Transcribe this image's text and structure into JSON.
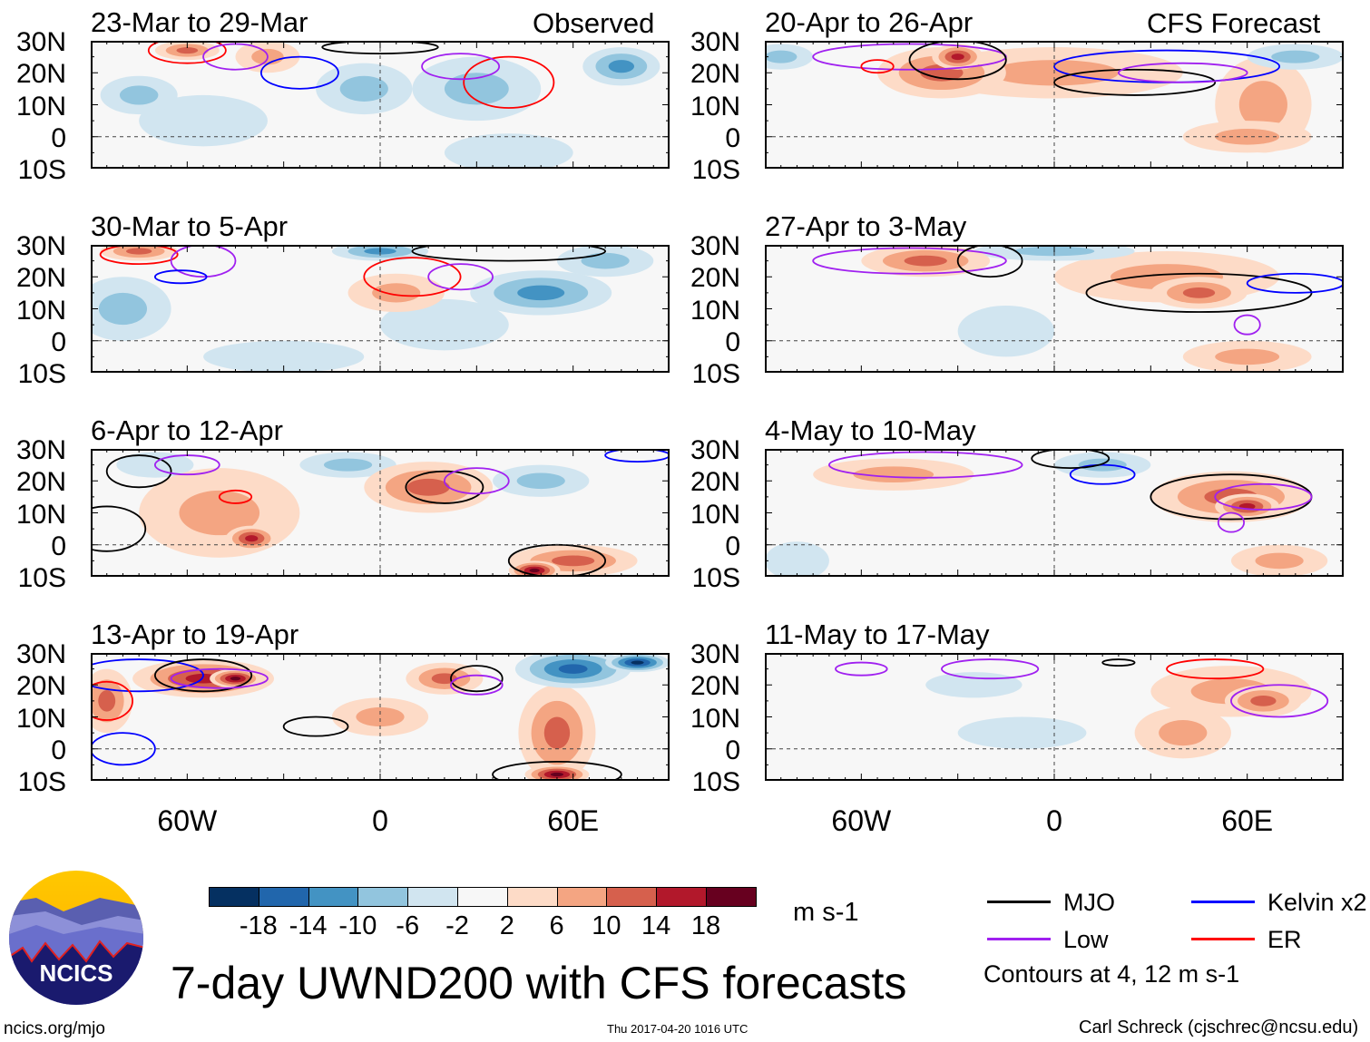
{
  "header": {
    "left_label": "Observed",
    "right_label": "CFS Forecast"
  },
  "panels": [
    {
      "title": "23-Mar to 29-Mar",
      "column": "left",
      "row": 0
    },
    {
      "title": "30-Mar to 5-Apr",
      "column": "left",
      "row": 1
    },
    {
      "title": "6-Apr to 12-Apr",
      "column": "left",
      "row": 2
    },
    {
      "title": "13-Apr to 19-Apr",
      "column": "left",
      "row": 3
    },
    {
      "title": "20-Apr to 26-Apr",
      "column": "right",
      "row": 0
    },
    {
      "title": "27-Apr to 3-May",
      "column": "right",
      "row": 1
    },
    {
      "title": "4-May to 10-May",
      "column": "right",
      "row": 2
    },
    {
      "title": "11-May to 17-May",
      "column": "right",
      "row": 3
    }
  ],
  "lat_labels": [
    "30N",
    "20N",
    "10N",
    "0",
    "10S"
  ],
  "lon_labels": [
    "60W",
    "0",
    "60E"
  ],
  "colorbar": {
    "labels": [
      "-18",
      "-14",
      "-10",
      "-6",
      "-2",
      "2",
      "6",
      "10",
      "14",
      "18"
    ],
    "colors": [
      "#053061",
      "#2166ac",
      "#4393c3",
      "#92c5de",
      "#d1e5f0",
      "#f7f7f7",
      "#fddbc7",
      "#f4a582",
      "#d6604d",
      "#b2182b",
      "#67001f"
    ],
    "units": "m s-1"
  },
  "legend": {
    "items": [
      {
        "label": "MJO",
        "color": "#000000"
      },
      {
        "label": "Kelvin x2",
        "color": "#0000ff"
      },
      {
        "label": "Low",
        "color": "#a020f0"
      },
      {
        "label": "ER",
        "color": "#ff0000"
      }
    ],
    "note": "Contours at 4, 12 m s-1"
  },
  "title": "7-day UWND200 with CFS forecasts",
  "logo_text": "NCICS",
  "footer": {
    "url": "ncics.org/mjo",
    "timestamp": "Thu 2017-04-20 1016 UTC",
    "author": "Carl Schreck (cjschrec@ncsu.edu)"
  },
  "chart_data": {
    "type": "heatmap",
    "variable": "200-hPa zonal wind anomaly (approx.)",
    "lon_range": [
      -90,
      90
    ],
    "lat_range": [
      -10,
      30
    ],
    "anomalies": [
      [
        [
          -75,
          13,
          12,
          6,
          -6
        ],
        [
          -35,
          25,
          10,
          5,
          6
        ],
        [
          -5,
          15,
          15,
          8,
          -6
        ],
        [
          30,
          15,
          20,
          10,
          -6
        ],
        [
          75,
          22,
          12,
          6,
          -10
        ],
        [
          -55,
          5,
          20,
          8,
          -2
        ],
        [
          40,
          -5,
          20,
          6,
          -2
        ],
        [
          -60,
          27,
          10,
          3,
          10
        ]
      ],
      [
        [
          -75,
          28,
          12,
          3,
          10
        ],
        [
          -80,
          10,
          15,
          10,
          -6
        ],
        [
          0,
          28,
          15,
          3,
          -10
        ],
        [
          50,
          15,
          22,
          7,
          -10
        ],
        [
          -30,
          -5,
          25,
          5,
          -2
        ],
        [
          20,
          5,
          20,
          8,
          -2
        ],
        [
          70,
          25,
          15,
          5,
          -6
        ],
        [
          5,
          15,
          15,
          6,
          6
        ]
      ],
      [
        [
          -50,
          10,
          25,
          14,
          6
        ],
        [
          -40,
          2,
          8,
          4,
          14
        ],
        [
          15,
          18,
          20,
          8,
          10
        ],
        [
          60,
          -5,
          20,
          5,
          10
        ],
        [
          48,
          -8,
          8,
          3,
          18
        ],
        [
          -10,
          25,
          15,
          4,
          -6
        ],
        [
          50,
          20,
          15,
          5,
          -6
        ],
        [
          -70,
          25,
          12,
          4,
          -2
        ]
      ],
      [
        [
          -55,
          22,
          22,
          6,
          14
        ],
        [
          -45,
          22,
          8,
          3,
          18
        ],
        [
          -85,
          15,
          8,
          10,
          10
        ],
        [
          20,
          22,
          12,
          5,
          10
        ],
        [
          55,
          5,
          12,
          15,
          10
        ],
        [
          55,
          -8,
          10,
          3,
          18
        ],
        [
          60,
          25,
          18,
          6,
          -14
        ],
        [
          80,
          27,
          10,
          3,
          -18
        ],
        [
          0,
          10,
          15,
          6,
          6
        ]
      ],
      [
        [
          -35,
          20,
          20,
          8,
          10
        ],
        [
          -30,
          25,
          8,
          4,
          14
        ],
        [
          0,
          20,
          40,
          8,
          6
        ],
        [
          65,
          10,
          15,
          15,
          6
        ],
        [
          75,
          25,
          15,
          4,
          -6
        ],
        [
          -85,
          25,
          10,
          4,
          -6
        ],
        [
          60,
          0,
          20,
          5,
          6
        ]
      ],
      [
        [
          -40,
          25,
          20,
          5,
          10
        ],
        [
          35,
          20,
          35,
          8,
          6
        ],
        [
          45,
          15,
          15,
          5,
          10
        ],
        [
          -15,
          3,
          15,
          8,
          -2
        ],
        [
          0,
          28,
          25,
          3,
          -6
        ],
        [
          60,
          -5,
          20,
          5,
          6
        ]
      ],
      [
        [
          -50,
          22,
          25,
          5,
          6
        ],
        [
          55,
          15,
          25,
          8,
          10
        ],
        [
          60,
          12,
          10,
          4,
          14
        ],
        [
          15,
          25,
          15,
          4,
          -6
        ],
        [
          -80,
          -5,
          10,
          6,
          -2
        ],
        [
          70,
          -5,
          15,
          5,
          6
        ]
      ],
      [
        [
          55,
          18,
          25,
          8,
          6
        ],
        [
          65,
          15,
          12,
          5,
          10
        ],
        [
          -25,
          20,
          15,
          4,
          -2
        ],
        [
          -10,
          5,
          20,
          5,
          -2
        ],
        [
          40,
          5,
          15,
          8,
          6
        ]
      ]
    ],
    "contours": [
      [
        [
          -60,
          27,
          12,
          4,
          "ER"
        ],
        [
          -45,
          25,
          10,
          4,
          "Low"
        ],
        [
          -25,
          20,
          12,
          5,
          "Kelvin"
        ],
        [
          0,
          28,
          18,
          2,
          "MJO"
        ],
        [
          40,
          17,
          14,
          8,
          "ER"
        ],
        [
          25,
          22,
          12,
          4,
          "Low"
        ]
      ],
      [
        [
          -75,
          27,
          12,
          3,
          "ER"
        ],
        [
          -55,
          25,
          10,
          5,
          "Low"
        ],
        [
          -62,
          20,
          8,
          2,
          "Kelvin"
        ],
        [
          10,
          20,
          15,
          6,
          "ER"
        ],
        [
          25,
          20,
          10,
          4,
          "Low"
        ],
        [
          40,
          28,
          30,
          3,
          "MJO"
        ]
      ],
      [
        [
          -75,
          23,
          10,
          5,
          "MJO"
        ],
        [
          -60,
          25,
          10,
          3,
          "Low"
        ],
        [
          -45,
          15,
          5,
          2,
          "ER"
        ],
        [
          20,
          18,
          12,
          5,
          "MJO"
        ],
        [
          30,
          20,
          10,
          4,
          "Low"
        ],
        [
          55,
          -5,
          15,
          5,
          "MJO"
        ],
        [
          80,
          28,
          10,
          2,
          "Kelvin"
        ],
        [
          -85,
          5,
          12,
          7,
          "MJO"
        ]
      ],
      [
        [
          -75,
          23,
          20,
          5,
          "Kelvin"
        ],
        [
          -55,
          23,
          15,
          5,
          "MJO"
        ],
        [
          -50,
          22,
          15,
          3,
          "Low"
        ],
        [
          -85,
          15,
          8,
          6,
          "ER"
        ],
        [
          -20,
          7,
          10,
          3,
          "MJO"
        ],
        [
          30,
          22,
          8,
          4,
          "MJO"
        ],
        [
          30,
          20,
          8,
          3,
          "Low"
        ],
        [
          55,
          -8,
          20,
          4,
          "MJO"
        ],
        [
          -80,
          0,
          10,
          5,
          "Kelvin"
        ]
      ],
      [
        [
          -45,
          25,
          30,
          4,
          "Low"
        ],
        [
          -30,
          24,
          15,
          6,
          "MJO"
        ],
        [
          35,
          22,
          35,
          5,
          "Kelvin"
        ],
        [
          25,
          17,
          25,
          4,
          "MJO"
        ],
        [
          40,
          20,
          20,
          3,
          "Low"
        ],
        [
          -55,
          22,
          5,
          2,
          "ER"
        ]
      ],
      [
        [
          -45,
          25,
          30,
          4,
          "Low"
        ],
        [
          -20,
          25,
          10,
          5,
          "MJO"
        ],
        [
          45,
          15,
          35,
          6,
          "MJO"
        ],
        [
          75,
          18,
          15,
          3,
          "Kelvin"
        ],
        [
          60,
          5,
          4,
          3,
          "Low"
        ]
      ],
      [
        [
          -40,
          25,
          30,
          4,
          "Low"
        ],
        [
          15,
          22,
          10,
          3,
          "Kelvin"
        ],
        [
          5,
          27,
          12,
          3,
          "MJO"
        ],
        [
          55,
          15,
          25,
          7,
          "MJO"
        ],
        [
          65,
          15,
          15,
          4,
          "Low"
        ],
        [
          55,
          7,
          4,
          3,
          "Low"
        ]
      ],
      [
        [
          -60,
          25,
          8,
          2,
          "Low"
        ],
        [
          -20,
          25,
          15,
          3,
          "Low"
        ],
        [
          20,
          27,
          5,
          1,
          "MJO"
        ],
        [
          70,
          15,
          15,
          5,
          "Low"
        ],
        [
          50,
          25,
          15,
          3,
          "ER"
        ]
      ]
    ]
  }
}
